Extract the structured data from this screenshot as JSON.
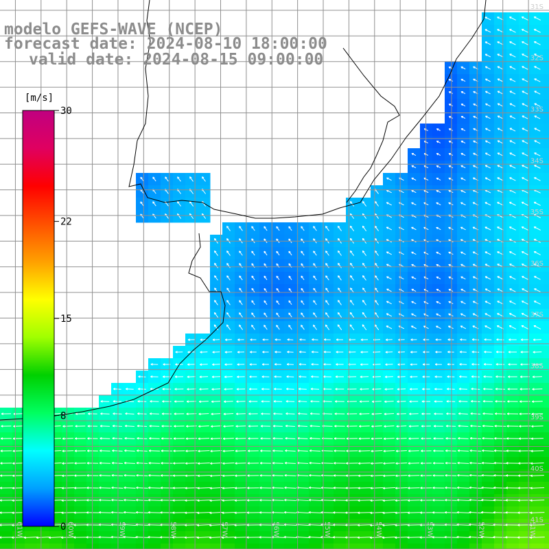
{
  "header": {
    "model_line": "modelo GEFS-WAVE (NCEP)",
    "forecast_line": "forecast date: 2024-08-10 18:00:00",
    "valid_line": "valid date: 2024-08-15 09:00:00"
  },
  "colorbar": {
    "unit": "[m/s]",
    "tick_labels": [
      "30",
      "22",
      "15",
      "8",
      "0"
    ],
    "ticks": [
      30,
      22,
      15,
      8,
      0
    ],
    "range": [
      0,
      30
    ],
    "colors": [
      "#0000ff",
      "#00a0ff",
      "#00ffff",
      "#00ff60",
      "#00d000",
      "#a0ff00",
      "#ffff00",
      "#ffa000",
      "#ff5000",
      "#ff0000",
      "#e00060",
      "#c00080"
    ]
  },
  "map": {
    "lat_labels": [
      "31S",
      "32S",
      "33S",
      "34S",
      "35S",
      "36S",
      "37S",
      "38S",
      "39S",
      "40S",
      "41S"
    ],
    "lon_labels": [
      "61W",
      "60W",
      "59W",
      "58W",
      "57W",
      "56W",
      "55W",
      "54W",
      "53W",
      "52W",
      "51W"
    ],
    "lat_range": [
      -41.5,
      -30.8
    ],
    "lon_range": [
      -61.3,
      -50.6
    ],
    "gridlines": true,
    "colors": {
      "land": "#ffffff",
      "coast": "#000000",
      "grid": "#8f8f8f",
      "arrow": "#ffffff",
      "low_speed": "#0000ff",
      "mid_speed": "#00c8ff",
      "high_speed": "#00ff90"
    }
  }
}
